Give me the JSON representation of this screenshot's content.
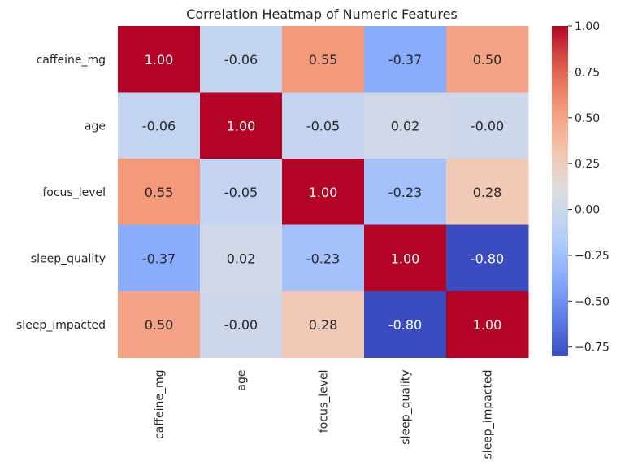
{
  "chart_data": {
    "type": "heatmap",
    "title": "Correlation Heatmap of Numeric Features",
    "xlabel": "",
    "ylabel": "",
    "x_labels": [
      "caffeine_mg",
      "age",
      "focus_level",
      "sleep_quality",
      "sleep_impacted"
    ],
    "y_labels": [
      "caffeine_mg",
      "age",
      "focus_level",
      "sleep_quality",
      "sleep_impacted"
    ],
    "values": [
      [
        1.0,
        -0.06,
        0.55,
        -0.37,
        0.5
      ],
      [
        -0.06,
        1.0,
        -0.05,
        0.02,
        -0.0
      ],
      [
        0.55,
        -0.05,
        1.0,
        -0.23,
        0.28
      ],
      [
        -0.37,
        0.02,
        -0.23,
        1.0,
        -0.8
      ],
      [
        0.5,
        -0.0,
        0.28,
        -0.8,
        1.0
      ]
    ],
    "cell_labels": [
      [
        "1.00",
        "-0.06",
        "0.55",
        "-0.37",
        "0.50"
      ],
      [
        "-0.06",
        "1.00",
        "-0.05",
        "0.02",
        "-0.00"
      ],
      [
        "0.55",
        "-0.05",
        "1.00",
        "-0.23",
        "0.28"
      ],
      [
        "-0.37",
        "0.02",
        "-0.23",
        "1.00",
        "-0.80"
      ],
      [
        "0.50",
        "-0.00",
        "0.28",
        "-0.80",
        "1.00"
      ]
    ],
    "colormap": "coolwarm",
    "colorbar": {
      "min": -0.8,
      "max": 1.0,
      "ticks": [
        1.0,
        0.75,
        0.5,
        0.25,
        0.0,
        -0.25,
        -0.5,
        -0.75
      ],
      "tick_labels": [
        "1.00",
        "0.75",
        "0.50",
        "0.25",
        "0.00",
        "−0.25",
        "−0.50",
        "−0.75"
      ]
    },
    "grid": false
  },
  "colors": {
    "text": "#262626",
    "background": "#ffffff",
    "cool_end": "#3b4cc0",
    "warm_end": "#b40426",
    "mid": "#dddddd"
  }
}
